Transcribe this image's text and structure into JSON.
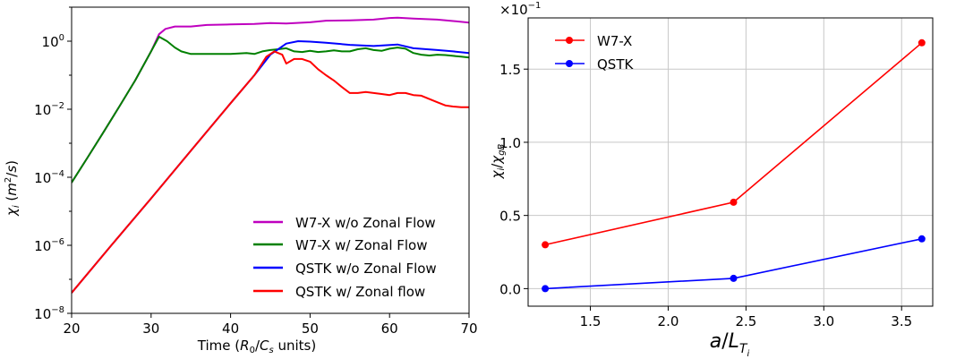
{
  "chart_data": [
    {
      "type": "line",
      "yscale": "log",
      "xlabel": "Time (R0/Cs units)",
      "ylabel": "χi (m2/s)",
      "xlim": [
        20,
        70
      ],
      "ylim": [
        1e-08,
        10
      ],
      "xticks": [
        20,
        30,
        40,
        50,
        60,
        70
      ],
      "yticks": [
        {
          "value": 1e-08,
          "base": "10",
          "exp": "−8"
        },
        {
          "value": 1e-06,
          "base": "10",
          "exp": "−6"
        },
        {
          "value": 0.0001,
          "base": "10",
          "exp": "−4"
        },
        {
          "value": 0.01,
          "base": "10",
          "exp": "−2"
        },
        {
          "value": 1,
          "base": "10",
          "exp": "0"
        }
      ],
      "grid": false,
      "legend_position": "bottom-right",
      "series": [
        {
          "name": "W7-X w/o Zonal Flow",
          "color": "#bf00bf",
          "x": [
            20,
            22,
            24,
            26,
            28,
            30,
            31,
            31.8,
            33,
            35,
            37,
            40,
            43,
            45,
            47,
            50,
            52,
            55,
            58,
            60,
            61,
            63,
            66,
            68,
            70
          ],
          "y": [
            7e-05,
            0.00038,
            0.0021,
            0.012,
            0.07,
            0.5,
            1.6,
            2.3,
            2.7,
            2.7,
            3.0,
            3.1,
            3.2,
            3.4,
            3.3,
            3.6,
            4.0,
            4.1,
            4.3,
            4.8,
            4.9,
            4.6,
            4.3,
            3.9,
            3.5
          ]
        },
        {
          "name": "W7-X w/ Zonal Flow",
          "color": "#008000",
          "x": [
            20,
            22,
            24,
            26,
            28,
            30,
            31,
            32,
            33,
            33.8,
            35,
            37,
            40,
            42,
            43,
            44,
            45,
            46,
            47,
            48,
            49,
            50,
            51,
            52,
            53,
            54,
            55,
            56,
            57,
            58,
            59,
            60,
            61,
            62,
            63,
            64,
            65,
            66,
            67,
            68,
            69,
            70
          ],
          "y": [
            7e-05,
            0.00038,
            0.0021,
            0.012,
            0.07,
            0.5,
            1.35,
            1.0,
            0.65,
            0.5,
            0.42,
            0.42,
            0.42,
            0.45,
            0.42,
            0.5,
            0.55,
            0.58,
            0.62,
            0.5,
            0.48,
            0.52,
            0.48,
            0.5,
            0.54,
            0.5,
            0.5,
            0.58,
            0.62,
            0.55,
            0.52,
            0.6,
            0.65,
            0.6,
            0.45,
            0.4,
            0.38,
            0.4,
            0.39,
            0.37,
            0.35,
            0.33
          ]
        },
        {
          "name": "QSTK w/o Zonal Flow",
          "color": "#0000ff",
          "x": [
            20,
            25,
            30,
            35,
            40,
            43,
            45,
            47,
            48.5,
            50,
            52,
            55,
            58,
            61,
            63,
            66,
            68,
            70
          ],
          "y": [
            4e-08,
            1e-06,
            2.4e-05,
            0.0006,
            0.015,
            0.1,
            0.4,
            0.85,
            1.0,
            0.97,
            0.9,
            0.78,
            0.72,
            0.8,
            0.62,
            0.55,
            0.5,
            0.45
          ]
        },
        {
          "name": "QSTK w/ Zonal flow",
          "color": "#ff0000",
          "x": [
            20,
            25,
            30,
            35,
            40,
            43,
            44.5,
            45.5,
            46.5,
            47,
            48,
            49,
            50,
            51,
            52,
            53,
            54,
            55,
            56,
            57,
            58,
            59,
            60,
            61,
            62,
            63,
            64,
            65,
            66,
            67,
            68,
            69,
            70
          ],
          "y": [
            4e-08,
            1e-06,
            2.4e-05,
            0.0006,
            0.015,
            0.1,
            0.35,
            0.5,
            0.4,
            0.22,
            0.3,
            0.3,
            0.25,
            0.15,
            0.1,
            0.07,
            0.045,
            0.03,
            0.03,
            0.032,
            0.03,
            0.028,
            0.026,
            0.03,
            0.03,
            0.026,
            0.025,
            0.02,
            0.016,
            0.013,
            0.012,
            0.0115,
            0.0115
          ]
        }
      ]
    },
    {
      "type": "line",
      "xlabel": "a/LTi",
      "ylabel": "χi/χgB",
      "scale_label": {
        "base": "×10",
        "exp": "−1"
      },
      "xlim": [
        1.1,
        3.7
      ],
      "ylim": [
        -0.12,
        1.85
      ],
      "xticks": [
        "1.5",
        "2.0",
        "2.5",
        "3.0",
        "3.5"
      ],
      "yticks": [
        "0.0",
        "0.5",
        "1.0",
        "1.5"
      ],
      "grid": true,
      "legend_position": "top-left",
      "series": [
        {
          "name": "W7-X",
          "color": "#ff0000",
          "marker": "circle",
          "x": [
            1.21,
            2.42,
            3.63
          ],
          "y": [
            0.3,
            0.59,
            1.68
          ]
        },
        {
          "name": "QSTK",
          "color": "#0000ff",
          "marker": "circle",
          "x": [
            1.21,
            2.42,
            3.63
          ],
          "y": [
            0.0,
            0.07,
            0.34
          ]
        }
      ]
    }
  ]
}
